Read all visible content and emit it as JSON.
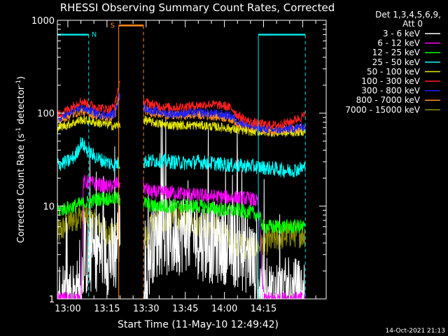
{
  "colors": {
    "background": "#000000",
    "axes": "#ffffff",
    "night_markers": "#00e5e5",
    "saa_markers": "#ff8c1a"
  },
  "header": {
    "title": "RHESSI Observing Summary Count Rates, Corrected",
    "legend_title_1": "Det 1,3,4,5,6,9,",
    "legend_title_2": "Att 0"
  },
  "footer": {
    "timestamp": "14-Oct-2021 21:13"
  },
  "chart_data": {
    "type": "line",
    "title": "RHESSI Observing Summary Count Rates, Corrected",
    "xlabel": "Start Time (11-May-10 12:49:42)",
    "ylabel": "Corrected Count Rate (s",
    "ylabel_sup1": "-1",
    "ylabel_mid": " detector",
    "ylabel_sup2": "-1",
    "ylabel_end": ")",
    "yscale": "log",
    "ylim": [
      1,
      1000
    ],
    "xlim_minutes": [
      -4,
      99
    ],
    "x_tick_labels": [
      "13:00",
      "13:15",
      "13:30",
      "13:45",
      "14:00",
      "14:15"
    ],
    "x_tick_minutes": [
      0,
      15,
      30,
      45,
      60,
      75
    ],
    "y_tick_labels": [
      "1",
      "10",
      "100",
      "1000"
    ],
    "y_tick_values": [
      1,
      10,
      100,
      1000
    ],
    "grid": false,
    "legend_position": "top-right",
    "night": {
      "label": "N",
      "intervals": [
        [
          -4,
          8
        ],
        [
          73,
          91
        ]
      ],
      "level": 700
    },
    "saa": {
      "label": "S",
      "start": 19.5,
      "end": 29,
      "level": 880
    },
    "gap": [
      20,
      29
    ],
    "series": [
      {
        "name": "3 - 6 keV",
        "color": "#ffffff",
        "kind": "low",
        "points": [
          [
            -4,
            1
          ],
          [
            5,
            1
          ],
          [
            6,
            3
          ],
          [
            8,
            2.8
          ],
          [
            12,
            3.5
          ],
          [
            16,
            3
          ],
          [
            18,
            2.6
          ],
          [
            19.5,
            6
          ],
          [
            29,
            1
          ],
          [
            32,
            4
          ],
          [
            36,
            5
          ],
          [
            40,
            4.5
          ],
          [
            45,
            5.5
          ],
          [
            50,
            4.5
          ],
          [
            55,
            4
          ],
          [
            60,
            4
          ],
          [
            65,
            3.5
          ],
          [
            70,
            3
          ],
          [
            75,
            1
          ],
          [
            91,
            1
          ]
        ]
      },
      {
        "name": "6 - 12 keV",
        "color": "#ff00ff",
        "kind": "mid",
        "points": [
          [
            -4,
            1
          ],
          [
            5,
            1
          ],
          [
            6,
            18
          ],
          [
            8,
            18
          ],
          [
            12,
            17
          ],
          [
            16,
            16
          ],
          [
            18,
            17
          ],
          [
            19.5,
            18
          ],
          [
            29,
            16
          ],
          [
            32,
            14
          ],
          [
            40,
            14
          ],
          [
            45,
            13.5
          ],
          [
            50,
            13
          ],
          [
            60,
            12.5
          ],
          [
            70,
            12
          ],
          [
            73,
            11
          ],
          [
            75,
            1
          ],
          [
            91,
            1
          ]
        ]
      },
      {
        "name": "12 - 25 keV",
        "color": "#00ff00",
        "kind": "mid",
        "points": [
          [
            -4,
            9
          ],
          [
            0,
            9.5
          ],
          [
            5,
            10.5
          ],
          [
            8,
            11
          ],
          [
            12,
            12
          ],
          [
            16,
            12
          ],
          [
            18,
            12
          ],
          [
            19.5,
            12
          ],
          [
            29,
            11
          ],
          [
            32,
            10
          ],
          [
            40,
            10
          ],
          [
            45,
            10
          ],
          [
            50,
            10
          ],
          [
            55,
            9.5
          ],
          [
            60,
            9
          ],
          [
            65,
            9
          ],
          [
            70,
            8.5
          ],
          [
            73,
            8
          ],
          [
            75,
            6
          ],
          [
            91,
            6
          ]
        ]
      },
      {
        "name": "25 - 50 keV",
        "color": "#00ffff",
        "kind": "mid",
        "points": [
          [
            -4,
            28
          ],
          [
            0,
            30
          ],
          [
            3,
            35
          ],
          [
            5,
            48
          ],
          [
            6,
            45
          ],
          [
            8,
            38
          ],
          [
            12,
            32
          ],
          [
            16,
            29
          ],
          [
            18,
            28
          ],
          [
            19.5,
            29
          ],
          [
            29,
            30
          ],
          [
            35,
            31
          ],
          [
            40,
            30
          ],
          [
            45,
            29
          ],
          [
            50,
            30
          ],
          [
            55,
            29
          ],
          [
            60,
            28
          ],
          [
            65,
            27
          ],
          [
            70,
            27
          ],
          [
            75,
            26
          ],
          [
            80,
            25
          ],
          [
            85,
            24
          ],
          [
            91,
            26
          ]
        ]
      },
      {
        "name": "50 - 100 keV",
        "color": "#e5e500",
        "kind": "hi",
        "points": [
          [
            -4,
            70
          ],
          [
            0,
            75
          ],
          [
            3,
            80
          ],
          [
            5,
            85
          ],
          [
            8,
            82
          ],
          [
            12,
            78
          ],
          [
            16,
            75
          ],
          [
            18,
            72
          ],
          [
            19.5,
            75
          ],
          [
            29,
            85
          ],
          [
            32,
            80
          ],
          [
            36,
            76
          ],
          [
            40,
            74
          ],
          [
            45,
            74
          ],
          [
            50,
            74
          ],
          [
            55,
            72
          ],
          [
            60,
            70
          ],
          [
            65,
            66
          ],
          [
            70,
            64
          ],
          [
            75,
            63
          ],
          [
            80,
            62
          ],
          [
            85,
            62
          ],
          [
            91,
            64
          ]
        ]
      },
      {
        "name": "100 - 300 keV",
        "color": "#ff2020",
        "kind": "hi",
        "points": [
          [
            -4,
            95
          ],
          [
            0,
            110
          ],
          [
            3,
            125
          ],
          [
            5,
            135
          ],
          [
            8,
            125
          ],
          [
            12,
            115
          ],
          [
            16,
            110
          ],
          [
            18,
            120
          ],
          [
            19.5,
            200
          ],
          [
            29,
            135
          ],
          [
            32,
            125
          ],
          [
            36,
            118
          ],
          [
            40,
            115
          ],
          [
            45,
            118
          ],
          [
            50,
            122
          ],
          [
            55,
            125
          ],
          [
            60,
            120
          ],
          [
            63,
            112
          ],
          [
            65,
            95
          ],
          [
            70,
            80
          ],
          [
            75,
            76
          ],
          [
            80,
            74
          ],
          [
            85,
            80
          ],
          [
            91,
            95
          ]
        ]
      },
      {
        "name": "300 - 800 keV",
        "color": "#2020ff",
        "kind": "hi",
        "points": [
          [
            -4,
            85
          ],
          [
            0,
            98
          ],
          [
            3,
            108
          ],
          [
            5,
            115
          ],
          [
            8,
            108
          ],
          [
            12,
            98
          ],
          [
            16,
            95
          ],
          [
            18,
            100
          ],
          [
            19.5,
            150
          ],
          [
            29,
            115
          ],
          [
            32,
            108
          ],
          [
            36,
            102
          ],
          [
            40,
            98
          ],
          [
            45,
            100
          ],
          [
            50,
            102
          ],
          [
            55,
            100
          ],
          [
            60,
            96
          ],
          [
            63,
            92
          ],
          [
            65,
            82
          ],
          [
            70,
            72
          ],
          [
            75,
            68
          ],
          [
            80,
            66
          ],
          [
            85,
            68
          ],
          [
            91,
            72
          ]
        ]
      },
      {
        "name": "800 - 7000 keV",
        "color": "#ff9020",
        "kind": "hi",
        "points": [
          [
            -4,
            82
          ],
          [
            0,
            92
          ],
          [
            3,
            100
          ],
          [
            5,
            106
          ],
          [
            8,
            100
          ],
          [
            12,
            93
          ],
          [
            16,
            90
          ],
          [
            18,
            95
          ],
          [
            19.5,
            145
          ],
          [
            29,
            110
          ],
          [
            32,
            102
          ],
          [
            36,
            97
          ],
          [
            40,
            94
          ],
          [
            45,
            95
          ],
          [
            50,
            96
          ],
          [
            55,
            94
          ],
          [
            60,
            90
          ],
          [
            63,
            86
          ],
          [
            65,
            78
          ],
          [
            70,
            70
          ],
          [
            75,
            66
          ],
          [
            80,
            65
          ],
          [
            85,
            66
          ],
          [
            91,
            70
          ]
        ]
      },
      {
        "name": "7000 - 15000 keV",
        "color": "#8c8c00",
        "kind": "low2",
        "points": [
          [
            -4,
            5
          ],
          [
            0,
            6.5
          ],
          [
            3,
            7.5
          ],
          [
            5,
            8
          ],
          [
            8,
            7.5
          ],
          [
            12,
            6
          ],
          [
            16,
            5
          ],
          [
            18,
            4.5
          ],
          [
            19.5,
            8
          ],
          [
            29,
            4
          ],
          [
            32,
            6
          ],
          [
            36,
            7
          ],
          [
            40,
            8
          ],
          [
            45,
            7.5
          ],
          [
            50,
            6.5
          ],
          [
            55,
            6
          ],
          [
            60,
            5
          ],
          [
            65,
            4
          ],
          [
            70,
            3.5
          ],
          [
            75,
            4
          ],
          [
            80,
            4.5
          ],
          [
            85,
            5
          ],
          [
            91,
            5
          ]
        ]
      }
    ]
  }
}
